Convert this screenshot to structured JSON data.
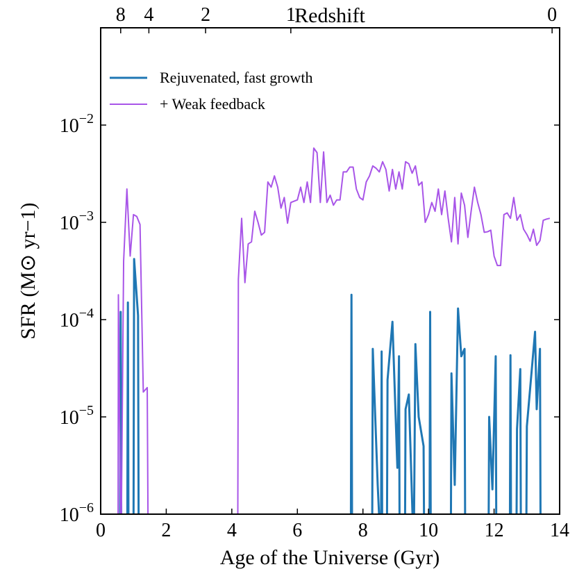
{
  "chart_data": {
    "type": "line",
    "xlabel": "Age of the Universe (Gyr)",
    "ylabel": "SFR (M⊙ yr−1)",
    "x2label": "Redshift",
    "xlim": [
      0,
      14
    ],
    "xticks": [
      0,
      2,
      4,
      6,
      8,
      10,
      12,
      14
    ],
    "ylim": [
      1e-06,
      0.1
    ],
    "log_y": true,
    "yticks": [
      {
        "value": 1e-06,
        "label": "10−6"
      },
      {
        "value": 1e-05,
        "label": "10−5"
      },
      {
        "value": 0.0001,
        "label": "10−4"
      },
      {
        "value": 0.001,
        "label": "10−3"
      },
      {
        "value": 0.01,
        "label": "10−2"
      }
    ],
    "x2ticks": [
      {
        "value": 0.61,
        "label": "8"
      },
      {
        "value": 1.47,
        "label": "4"
      },
      {
        "value": 3.2,
        "label": "2"
      },
      {
        "value": 5.8,
        "label": "1"
      },
      {
        "value": 13.77,
        "label": "0"
      }
    ],
    "legend": "upper left",
    "series": [
      {
        "name": "Rejuvenated, fast growth",
        "color": "#1f77b4",
        "linewidth": 3,
        "x": [
          0.59,
          0.61,
          0.63,
          0.81,
          0.83,
          0.85,
          1.0,
          1.02,
          1.14,
          1.16,
          7.63,
          7.65,
          7.67,
          8.28,
          8.3,
          8.45,
          8.55,
          8.57,
          8.59,
          8.73,
          8.75,
          8.9,
          9.05,
          9.1,
          9.12,
          9.28,
          9.3,
          9.4,
          9.55,
          9.6,
          9.7,
          9.85,
          9.87,
          10.03,
          10.05,
          10.07,
          10.68,
          10.7,
          10.8,
          10.9,
          11.0,
          11.1,
          11.12,
          11.83,
          11.85,
          11.95,
          12.05,
          12.07,
          12.48,
          12.5,
          12.52,
          12.68,
          12.7,
          12.8,
          12.82,
          12.98,
          13.0,
          13.25,
          13.3,
          13.4,
          13.42
        ],
        "values": [
          0,
          0.00012,
          0,
          0,
          0.00015,
          0,
          0,
          0.00042,
          0.00011,
          0,
          0,
          0.00018,
          0,
          0,
          5e-05,
          2e-06,
          0,
          4.7e-05,
          0,
          0,
          2.4e-05,
          9.5e-05,
          3e-06,
          4.2e-05,
          0,
          0,
          1.2e-05,
          1.7e-05,
          0,
          5.6e-05,
          1e-05,
          5e-06,
          0,
          0,
          0.00012,
          0,
          0,
          2.8e-05,
          2e-06,
          0.00013,
          4.2e-05,
          5e-05,
          0,
          0,
          1e-05,
          1.8e-06,
          4.2e-05,
          0,
          0,
          4.3e-05,
          0,
          0,
          7.5e-06,
          3.1e-05,
          0,
          0,
          8e-06,
          7.5e-05,
          1.2e-05,
          5e-05,
          0
        ]
      },
      {
        "name": "+ Weak feedback",
        "color": "#a855e8",
        "linewidth": 2,
        "x": [
          0.53,
          0.54,
          0.62,
          0.7,
          0.8,
          0.9,
          1.0,
          1.1,
          1.2,
          1.3,
          1.42,
          1.45,
          4.18,
          4.2,
          4.3,
          4.4,
          4.5,
          4.6,
          4.7,
          4.8,
          4.9,
          5.0,
          5.1,
          5.2,
          5.3,
          5.4,
          5.5,
          5.6,
          5.7,
          5.8,
          5.9,
          6.0,
          6.1,
          6.2,
          6.3,
          6.4,
          6.5,
          6.6,
          6.7,
          6.8,
          6.9,
          7.0,
          7.1,
          7.2,
          7.3,
          7.4,
          7.5,
          7.6,
          7.7,
          7.8,
          7.9,
          8.0,
          8.1,
          8.2,
          8.3,
          8.4,
          8.5,
          8.6,
          8.7,
          8.8,
          8.9,
          9.0,
          9.1,
          9.2,
          9.3,
          9.4,
          9.5,
          9.6,
          9.7,
          9.8,
          9.9,
          10.0,
          10.1,
          10.2,
          10.3,
          10.4,
          10.5,
          10.6,
          10.7,
          10.8,
          10.9,
          11.0,
          11.1,
          11.2,
          11.3,
          11.4,
          11.5,
          11.6,
          11.7,
          11.8,
          11.9,
          12.0,
          12.1,
          12.2,
          12.3,
          12.4,
          12.5,
          12.6,
          12.7,
          12.8,
          12.9,
          13.0,
          13.1,
          13.2,
          13.3,
          13.4,
          13.5,
          13.6,
          13.7
        ],
        "values": [
          0,
          0.00018,
          0,
          0.0004,
          0.0022,
          0.00045,
          0.0012,
          0.00115,
          0.00095,
          1.8e-05,
          2e-05,
          0,
          0,
          0.00026,
          0.0011,
          0.00024,
          0.0006,
          0.00063,
          0.0013,
          0.001,
          0.00074,
          0.00079,
          0.0026,
          0.0023,
          0.003,
          0.0023,
          0.0014,
          0.0018,
          0.00098,
          0.0016,
          0.00165,
          0.0017,
          0.0023,
          0.0016,
          0.0026,
          0.0016,
          0.0058,
          0.0052,
          0.0016,
          0.0053,
          0.0016,
          0.0019,
          0.0015,
          0.0017,
          0.0017,
          0.0033,
          0.0033,
          0.0037,
          0.0037,
          0.0022,
          0.0018,
          0.0017,
          0.0026,
          0.003,
          0.0038,
          0.0036,
          0.0033,
          0.0042,
          0.0035,
          0.0021,
          0.0035,
          0.0022,
          0.0033,
          0.0022,
          0.0042,
          0.004,
          0.0032,
          0.0038,
          0.0024,
          0.0026,
          0.001,
          0.0012,
          0.0016,
          0.0013,
          0.0022,
          0.0012,
          0.0021,
          0.0011,
          0.00063,
          0.0018,
          0.0006,
          0.002,
          0.0015,
          0.0007,
          0.0013,
          0.0023,
          0.0016,
          0.0012,
          0.00079,
          0.0008,
          0.00083,
          0.00045,
          0.00036,
          0.00036,
          0.0012,
          0.00125,
          0.0011,
          0.0018,
          0.00105,
          0.0012,
          0.00085,
          0.00075,
          0.00064,
          0.00085,
          0.00058,
          0.00065,
          0.00105,
          0.00108,
          0.0011
        ]
      }
    ]
  }
}
